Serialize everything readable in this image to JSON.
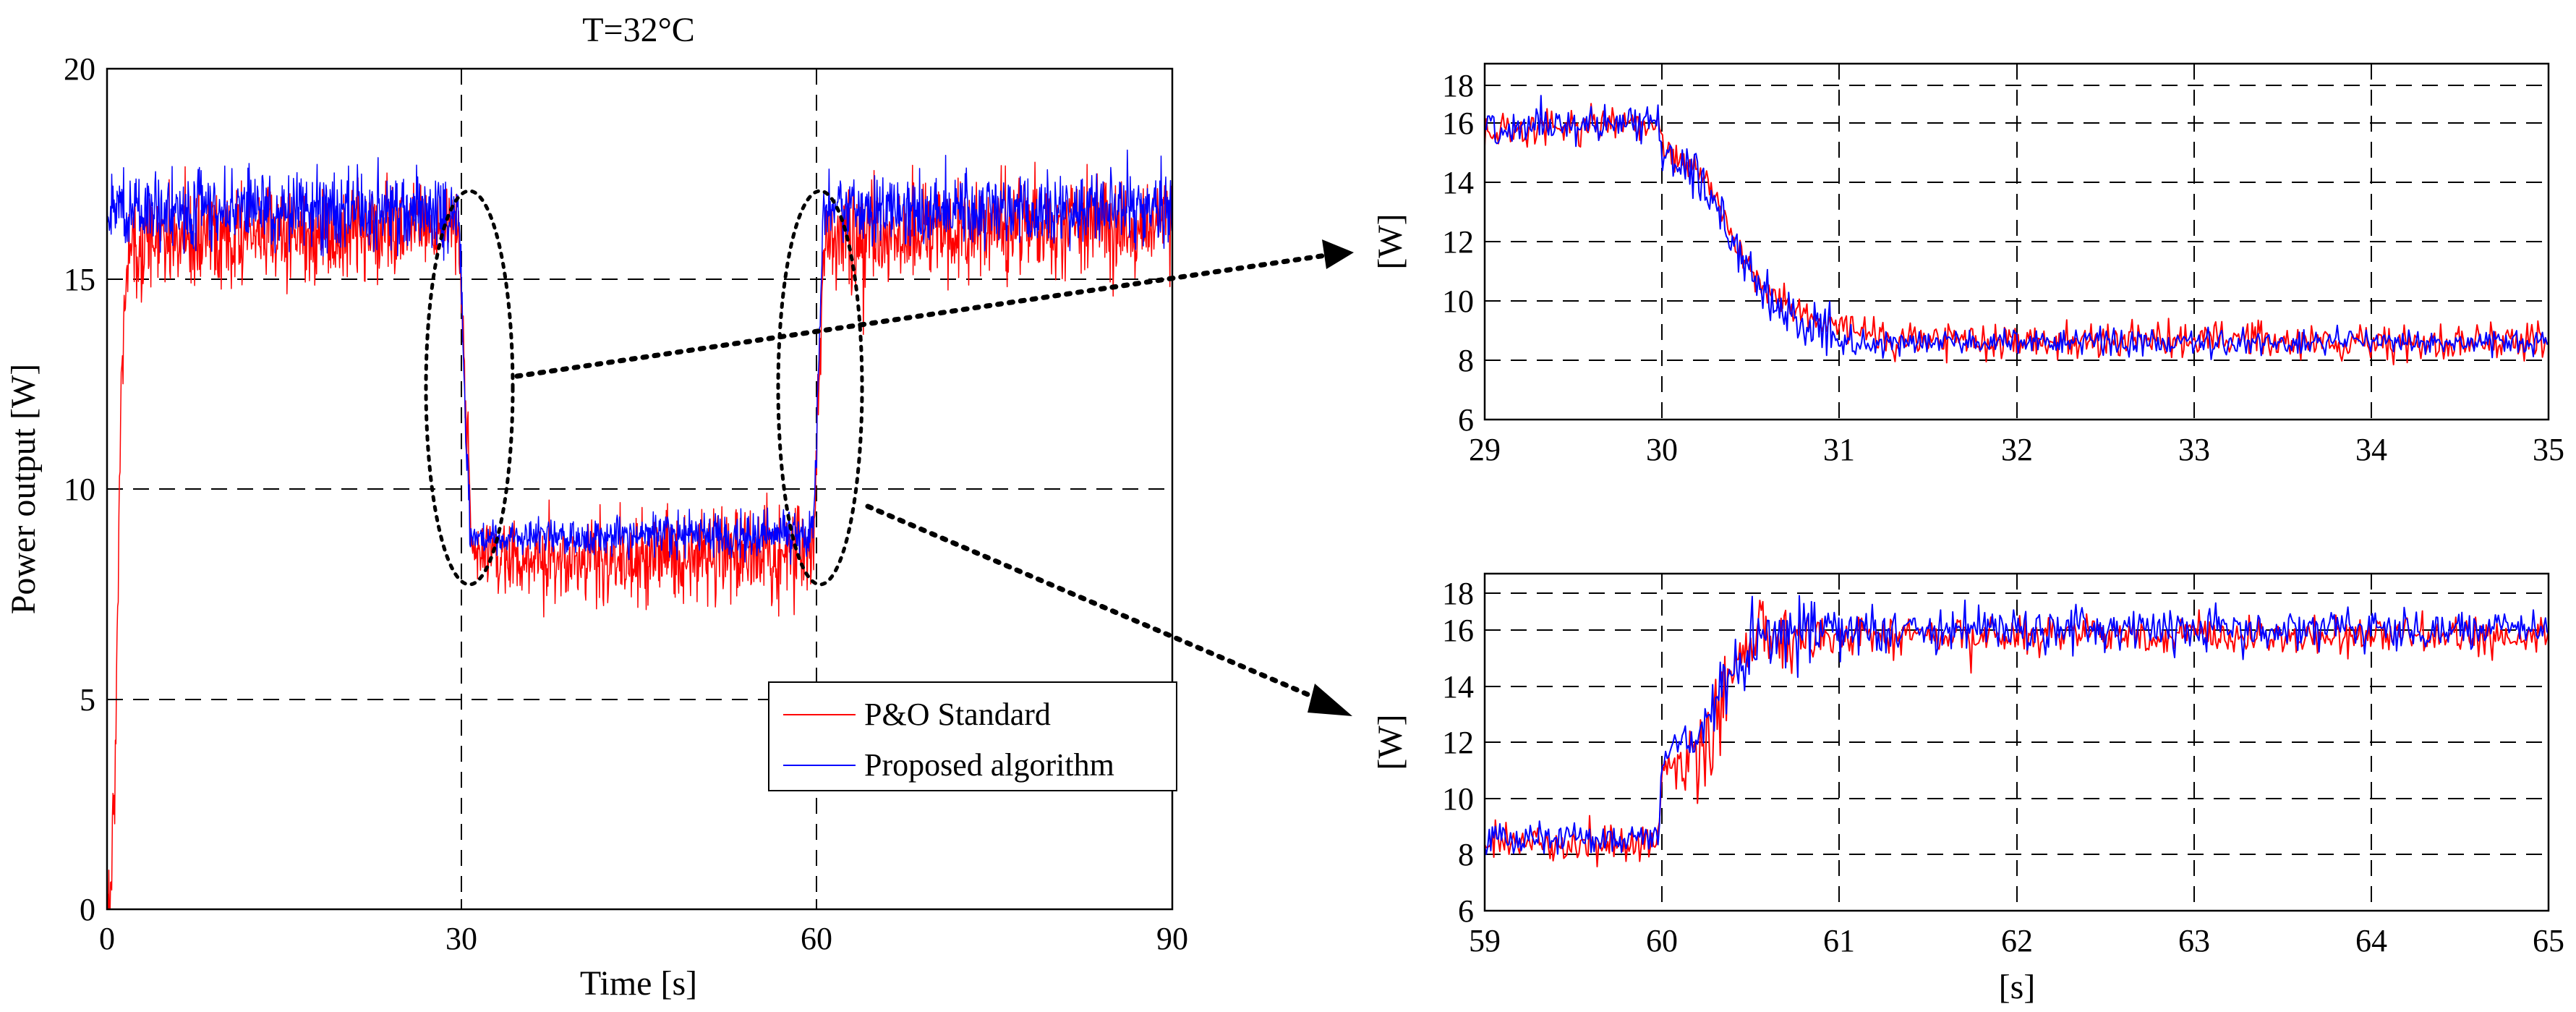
{
  "colors": {
    "po_standard": "#ff0000",
    "proposed": "#0000ff",
    "grid": "#000000",
    "background": "#ffffff"
  },
  "chart_data": [
    {
      "id": "main",
      "type": "line",
      "title": "T=32°C",
      "xlabel": "Time [s]",
      "ylabel": "Power output [W]",
      "xlim": [
        0,
        90
      ],
      "ylim": [
        0,
        20
      ],
      "xticks": [
        0,
        30,
        60,
        90
      ],
      "yticks": [
        0,
        5,
        10,
        15,
        20
      ],
      "grid": true,
      "legend": {
        "position": "bottom-right",
        "entries": [
          "P&O Standard",
          "Proposed algorithm"
        ]
      },
      "annotations": [
        "zoom ellipse around t=30 s linked to top-right panel",
        "zoom ellipse around t=60 s linked to bottom-right panel"
      ],
      "series": [
        {
          "name": "P&O Standard",
          "color": "#ff0000",
          "profile": [
            [
              0,
              0
            ],
            [
              0.3,
              0.5
            ],
            [
              0.7,
              3.5
            ],
            [
              1.2,
              12.5
            ],
            [
              1.8,
              15.9
            ],
            [
              29.7,
              16.2
            ],
            [
              30.3,
              12.0
            ],
            [
              30.8,
              9.0
            ],
            [
              31.2,
              8.4
            ],
            [
              59.7,
              8.4
            ],
            [
              60.1,
              12.0
            ],
            [
              60.5,
              15.9
            ],
            [
              90,
              16.4
            ]
          ],
          "noise": [
            [
              0,
              0.4
            ],
            [
              2,
              0.6
            ],
            [
              30,
              0.5
            ],
            [
              31.2,
              0.45
            ],
            [
              60,
              0.6
            ],
            [
              90,
              0.6
            ]
          ]
        },
        {
          "name": "Proposed algorithm",
          "color": "#0000ff",
          "profile": [
            [
              0,
              16.7
            ],
            [
              29.7,
              16.6
            ],
            [
              30.2,
              12.0
            ],
            [
              30.7,
              9.0
            ],
            [
              31,
              8.9
            ],
            [
              59.7,
              8.9
            ],
            [
              60.1,
              12.5
            ],
            [
              60.5,
              16.6
            ],
            [
              90,
              16.7
            ]
          ],
          "noise": [
            [
              0,
              0.45
            ],
            [
              30,
              0.45
            ],
            [
              31,
              0.18
            ],
            [
              60,
              0.3
            ],
            [
              60.5,
              0.4
            ],
            [
              90,
              0.4
            ]
          ]
        }
      ]
    },
    {
      "id": "zoom_top",
      "type": "line",
      "title": "",
      "xlabel": "",
      "ylabel": "[W]",
      "xlim": [
        29,
        35
      ],
      "ylim": [
        6,
        18
      ],
      "xticks": [
        29,
        30,
        31,
        32,
        33,
        34,
        35
      ],
      "yticks": [
        6,
        8,
        10,
        12,
        14,
        16,
        18
      ],
      "grid": true,
      "series": [
        {
          "name": "P&O Standard",
          "color": "#ff0000",
          "profile": [
            [
              29,
              16.6
            ],
            [
              29.98,
              16.8
            ],
            [
              30.0,
              15.8
            ],
            [
              30.18,
              15.2
            ],
            [
              30.3,
              14.2
            ],
            [
              30.45,
              12.0
            ],
            [
              30.6,
              10.6
            ],
            [
              30.8,
              9.8
            ],
            [
              31.0,
              9.3
            ],
            [
              31.3,
              8.95
            ],
            [
              35,
              8.75
            ]
          ],
          "noise": [
            [
              29,
              0.35
            ],
            [
              30,
              0.3
            ],
            [
              30.3,
              0.25
            ],
            [
              31,
              0.3
            ],
            [
              31.3,
              0.35
            ],
            [
              35,
              0.35
            ]
          ]
        },
        {
          "name": "Proposed algorithm",
          "color": "#0000ff",
          "profile": [
            [
              29,
              16.7
            ],
            [
              29.98,
              16.8
            ],
            [
              30.0,
              15.7
            ],
            [
              30.18,
              15.0
            ],
            [
              30.3,
              13.9
            ],
            [
              30.45,
              11.8
            ],
            [
              30.6,
              10.3
            ],
            [
              30.8,
              9.5
            ],
            [
              31.0,
              9.0
            ],
            [
              31.3,
              8.85
            ],
            [
              35,
              8.8
            ]
          ],
          "noise": [
            [
              29,
              0.3
            ],
            [
              30,
              0.3
            ],
            [
              30.4,
              0.45
            ],
            [
              30.9,
              0.45
            ],
            [
              31.2,
              0.25
            ],
            [
              35,
              0.22
            ]
          ]
        }
      ]
    },
    {
      "id": "zoom_bottom",
      "type": "line",
      "title": "",
      "xlabel": "[s]",
      "ylabel": "[W]",
      "xlim": [
        59,
        65
      ],
      "ylim": [
        6,
        18
      ],
      "xticks": [
        59,
        60,
        61,
        62,
        63,
        64,
        65
      ],
      "yticks": [
        6,
        8,
        10,
        12,
        14,
        16,
        18
      ],
      "grid": true,
      "series": [
        {
          "name": "P&O Standard",
          "color": "#ff0000",
          "profile": [
            [
              59,
              8.6
            ],
            [
              59.98,
              8.6
            ],
            [
              60.0,
              11.5
            ],
            [
              60.2,
              12.0
            ],
            [
              60.3,
              13.5
            ],
            [
              60.4,
              15.5
            ],
            [
              60.55,
              16.6
            ],
            [
              65,
              16.6
            ]
          ],
          "noise": [
            [
              59,
              0.35
            ],
            [
              60,
              0.35
            ],
            [
              60.2,
              0.9
            ],
            [
              60.6,
              0.7
            ],
            [
              61,
              0.35
            ],
            [
              65,
              0.35
            ]
          ]
        },
        {
          "name": "Proposed algorithm",
          "color": "#0000ff",
          "profile": [
            [
              59,
              8.75
            ],
            [
              59.98,
              8.8
            ],
            [
              60.0,
              11.8
            ],
            [
              60.2,
              12.7
            ],
            [
              60.3,
              14.2
            ],
            [
              60.5,
              16.2
            ],
            [
              60.7,
              16.8
            ],
            [
              65,
              16.85
            ]
          ],
          "noise": [
            [
              59,
              0.3
            ],
            [
              60,
              0.3
            ],
            [
              60.2,
              0.5
            ],
            [
              60.5,
              0.9
            ],
            [
              61,
              0.5
            ],
            [
              65,
              0.35
            ]
          ]
        }
      ]
    }
  ]
}
